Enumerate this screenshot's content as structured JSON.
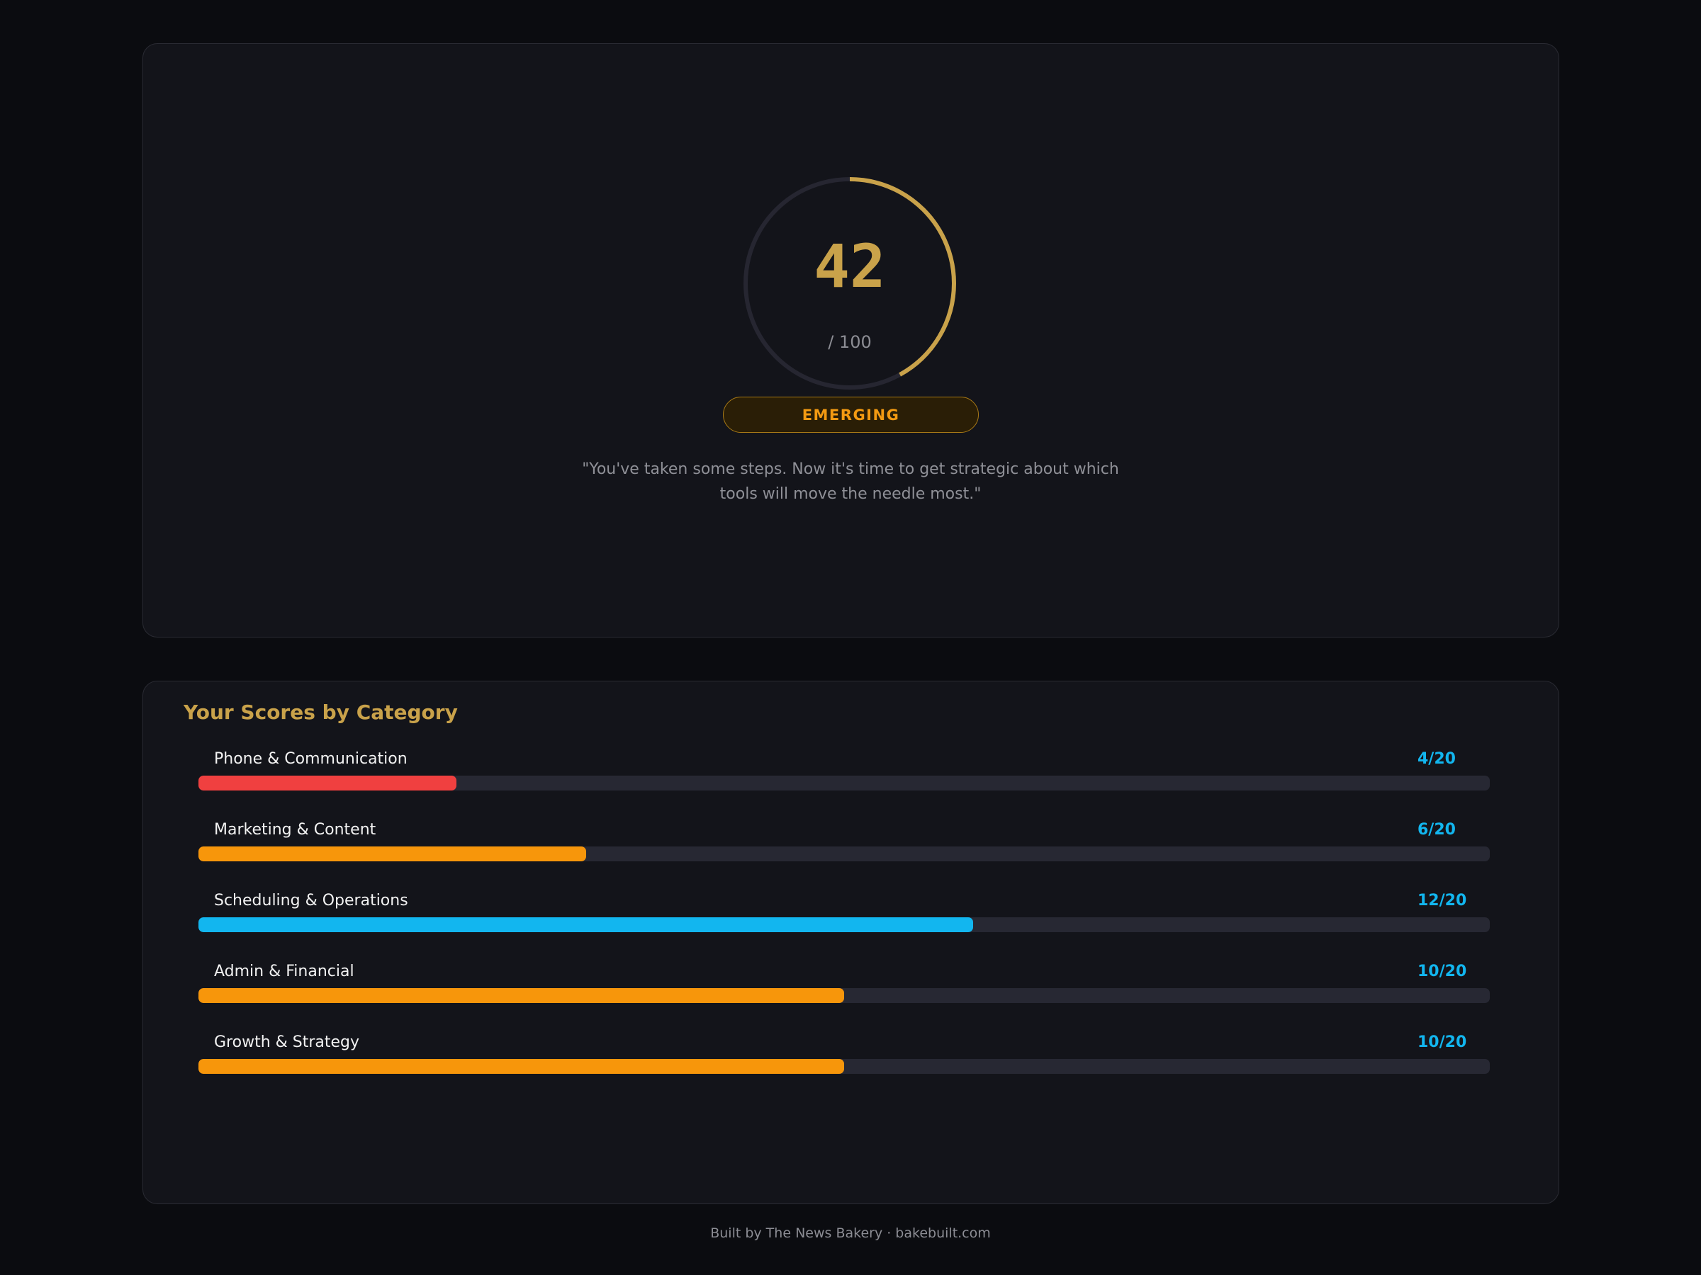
{
  "score": {
    "value": "42",
    "max_label": "/ 100",
    "fraction": 0.42,
    "accent": "#c9a24a",
    "badge": "EMERGING",
    "quote": "\"You've taken some steps. Now it's time to get strategic about which tools will move the needle most.\""
  },
  "categories": {
    "title": "Your Scores by Category",
    "items": [
      {
        "icon": "phone-icon",
        "glyph": "",
        "label": "Phone & Communication",
        "score": "4/20",
        "value": 4,
        "max": 20,
        "color": "#f04040"
      },
      {
        "icon": "marketing-icon",
        "glyph": "",
        "label": "Marketing & Content",
        "score": "6/20",
        "value": 6,
        "max": 20,
        "color": "#f7960b"
      },
      {
        "icon": "calendar-icon",
        "glyph": "",
        "label": "Scheduling & Operations",
        "score": "12/20",
        "value": 12,
        "max": 20,
        "color": "#12b6ef"
      },
      {
        "icon": "finance-icon",
        "glyph": "",
        "label": "Admin & Financial",
        "score": "10/20",
        "value": 10,
        "max": 20,
        "color": "#f7960b"
      },
      {
        "icon": "growth-icon",
        "glyph": "",
        "label": "Growth & Strategy",
        "score": "10/20",
        "value": 10,
        "max": 20,
        "color": "#f7960b"
      }
    ]
  },
  "footer": {
    "text": "Built by The News Bakery · bakebuilt.com"
  }
}
